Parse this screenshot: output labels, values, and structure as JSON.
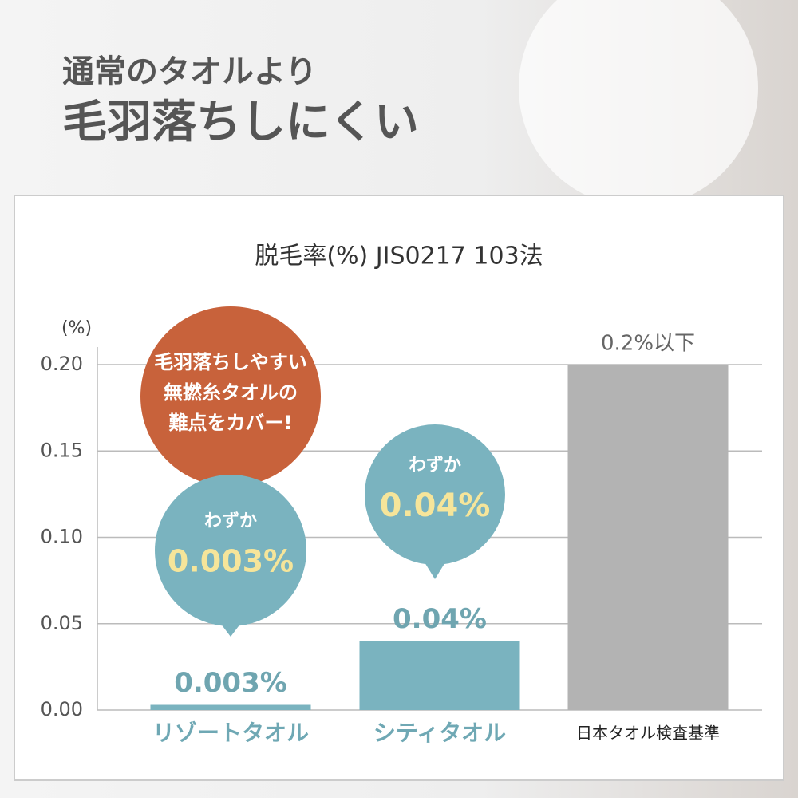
{
  "header": {
    "line1": "通常のタオルより",
    "line2": "毛羽落ちしにくい"
  },
  "chart_data": {
    "type": "bar",
    "title": "脱毛率(%) JIS0217 103法",
    "y_label": "(%)",
    "categories": [
      "リゾートタオル",
      "シティタオル",
      "日本タオル検査基準"
    ],
    "values": [
      0.003,
      0.04,
      0.2
    ],
    "value_labels": [
      "0.003%",
      "0.04%",
      "0.2%以下"
    ],
    "colors": [
      "#7ab3bf",
      "#7ab3bf",
      "#b3b3b3"
    ],
    "category_label_colors": [
      "#6fa8b4",
      "#6fa8b4",
      "#222222"
    ],
    "ylim": [
      0,
      0.2
    ],
    "yticks": [
      {
        "value": 0,
        "label": "0.00"
      },
      {
        "value": 0.05,
        "label": "0.05"
      },
      {
        "value": 0.1,
        "label": "0.10"
      },
      {
        "value": 0.15,
        "label": "0.15"
      },
      {
        "value": 0.2,
        "label": "0.20"
      }
    ],
    "grid": true,
    "annotations": [
      {
        "lines": [
          "毛羽落ちしやすい",
          "無撚糸タオルの",
          "難点をカバー!"
        ],
        "color": "#c8623b"
      },
      {
        "label": "わずか",
        "value": "0.003%",
        "color": "#7ab3bf"
      },
      {
        "label": "わずか",
        "value": "0.04%",
        "color": "#7ab3bf"
      }
    ]
  }
}
